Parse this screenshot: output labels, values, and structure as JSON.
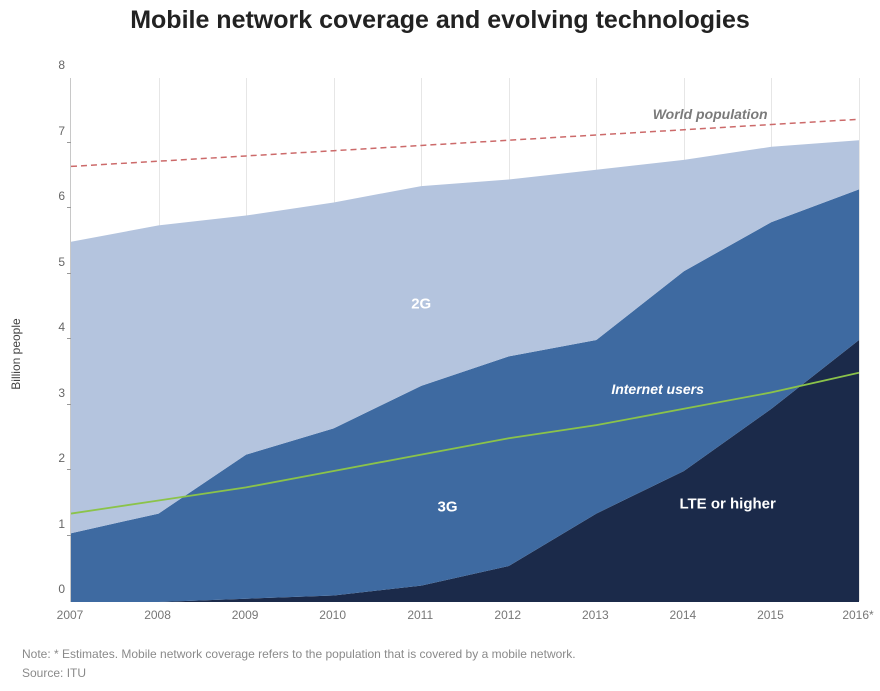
{
  "title": "Mobile network coverage and evolving technologies",
  "ylabel": "Billion people",
  "footnote": "Note: * Estimates. Mobile network coverage refers to the population that is covered by a mobile network.",
  "source": "Source: ITU",
  "chart": {
    "type": "area",
    "background_color": "#ffffff",
    "xlim": [
      2007,
      2016
    ],
    "ylim": [
      0,
      8
    ],
    "ytick_step": 1,
    "x_categories": [
      "2007",
      "2008",
      "2009",
      "2010",
      "2011",
      "2012",
      "2013",
      "2014",
      "2015",
      "2016*"
    ],
    "x_positions": [
      2007,
      2008,
      2009,
      2010,
      2011,
      2012,
      2013,
      2014,
      2015,
      2016
    ],
    "axis_color": "#c8c8c8",
    "tick_text_color": "#777777",
    "xgrid_color": "#e6e6e6",
    "stacked": true,
    "stack_order": [
      "lte",
      "g3",
      "g2"
    ],
    "series": {
      "lte": {
        "label": "LTE or higher",
        "color": "#1b2a4a",
        "values": [
          0.0,
          0.0,
          0.05,
          0.1,
          0.25,
          0.55,
          1.35,
          2.0,
          2.95,
          4.0
        ]
      },
      "g3": {
        "label": "3G",
        "color": "#3e6aa1",
        "values": [
          1.05,
          1.35,
          2.2,
          2.55,
          3.05,
          3.2,
          2.65,
          3.05,
          2.85,
          2.3
        ]
      },
      "g2": {
        "label": "2G",
        "color": "#b4c4de",
        "values": [
          4.45,
          4.4,
          3.65,
          3.45,
          3.05,
          2.7,
          2.6,
          1.7,
          1.15,
          0.75
        ]
      }
    },
    "lines": {
      "world_population": {
        "label": "World population",
        "color": "#cc6a6a",
        "dash": "6,4",
        "width": 1.5,
        "values": [
          6.65,
          6.73,
          6.81,
          6.89,
          6.97,
          7.05,
          7.13,
          7.21,
          7.29,
          7.37
        ]
      },
      "internet_users": {
        "label": "Internet users",
        "color": "#8bc34a",
        "dash": "none",
        "width": 1.8,
        "values": [
          1.35,
          1.55,
          1.75,
          2.0,
          2.25,
          2.5,
          2.7,
          2.95,
          3.2,
          3.5
        ]
      }
    },
    "series_label_positions": {
      "g2": {
        "x": 2011.0,
        "y": 4.55
      },
      "g3": {
        "x": 2011.3,
        "y": 1.45
      },
      "lte": {
        "x": 2014.5,
        "y": 1.5
      }
    },
    "line_label_positions": {
      "world_population": {
        "x": 2014.3,
        "y": 7.45,
        "color": "#7a7a7a"
      },
      "internet_users": {
        "x": 2013.7,
        "y": 3.25,
        "color": "#ffffff"
      }
    },
    "title_fontsize": 25,
    "label_fontsize": 12,
    "series_label_fontsize": 15
  }
}
